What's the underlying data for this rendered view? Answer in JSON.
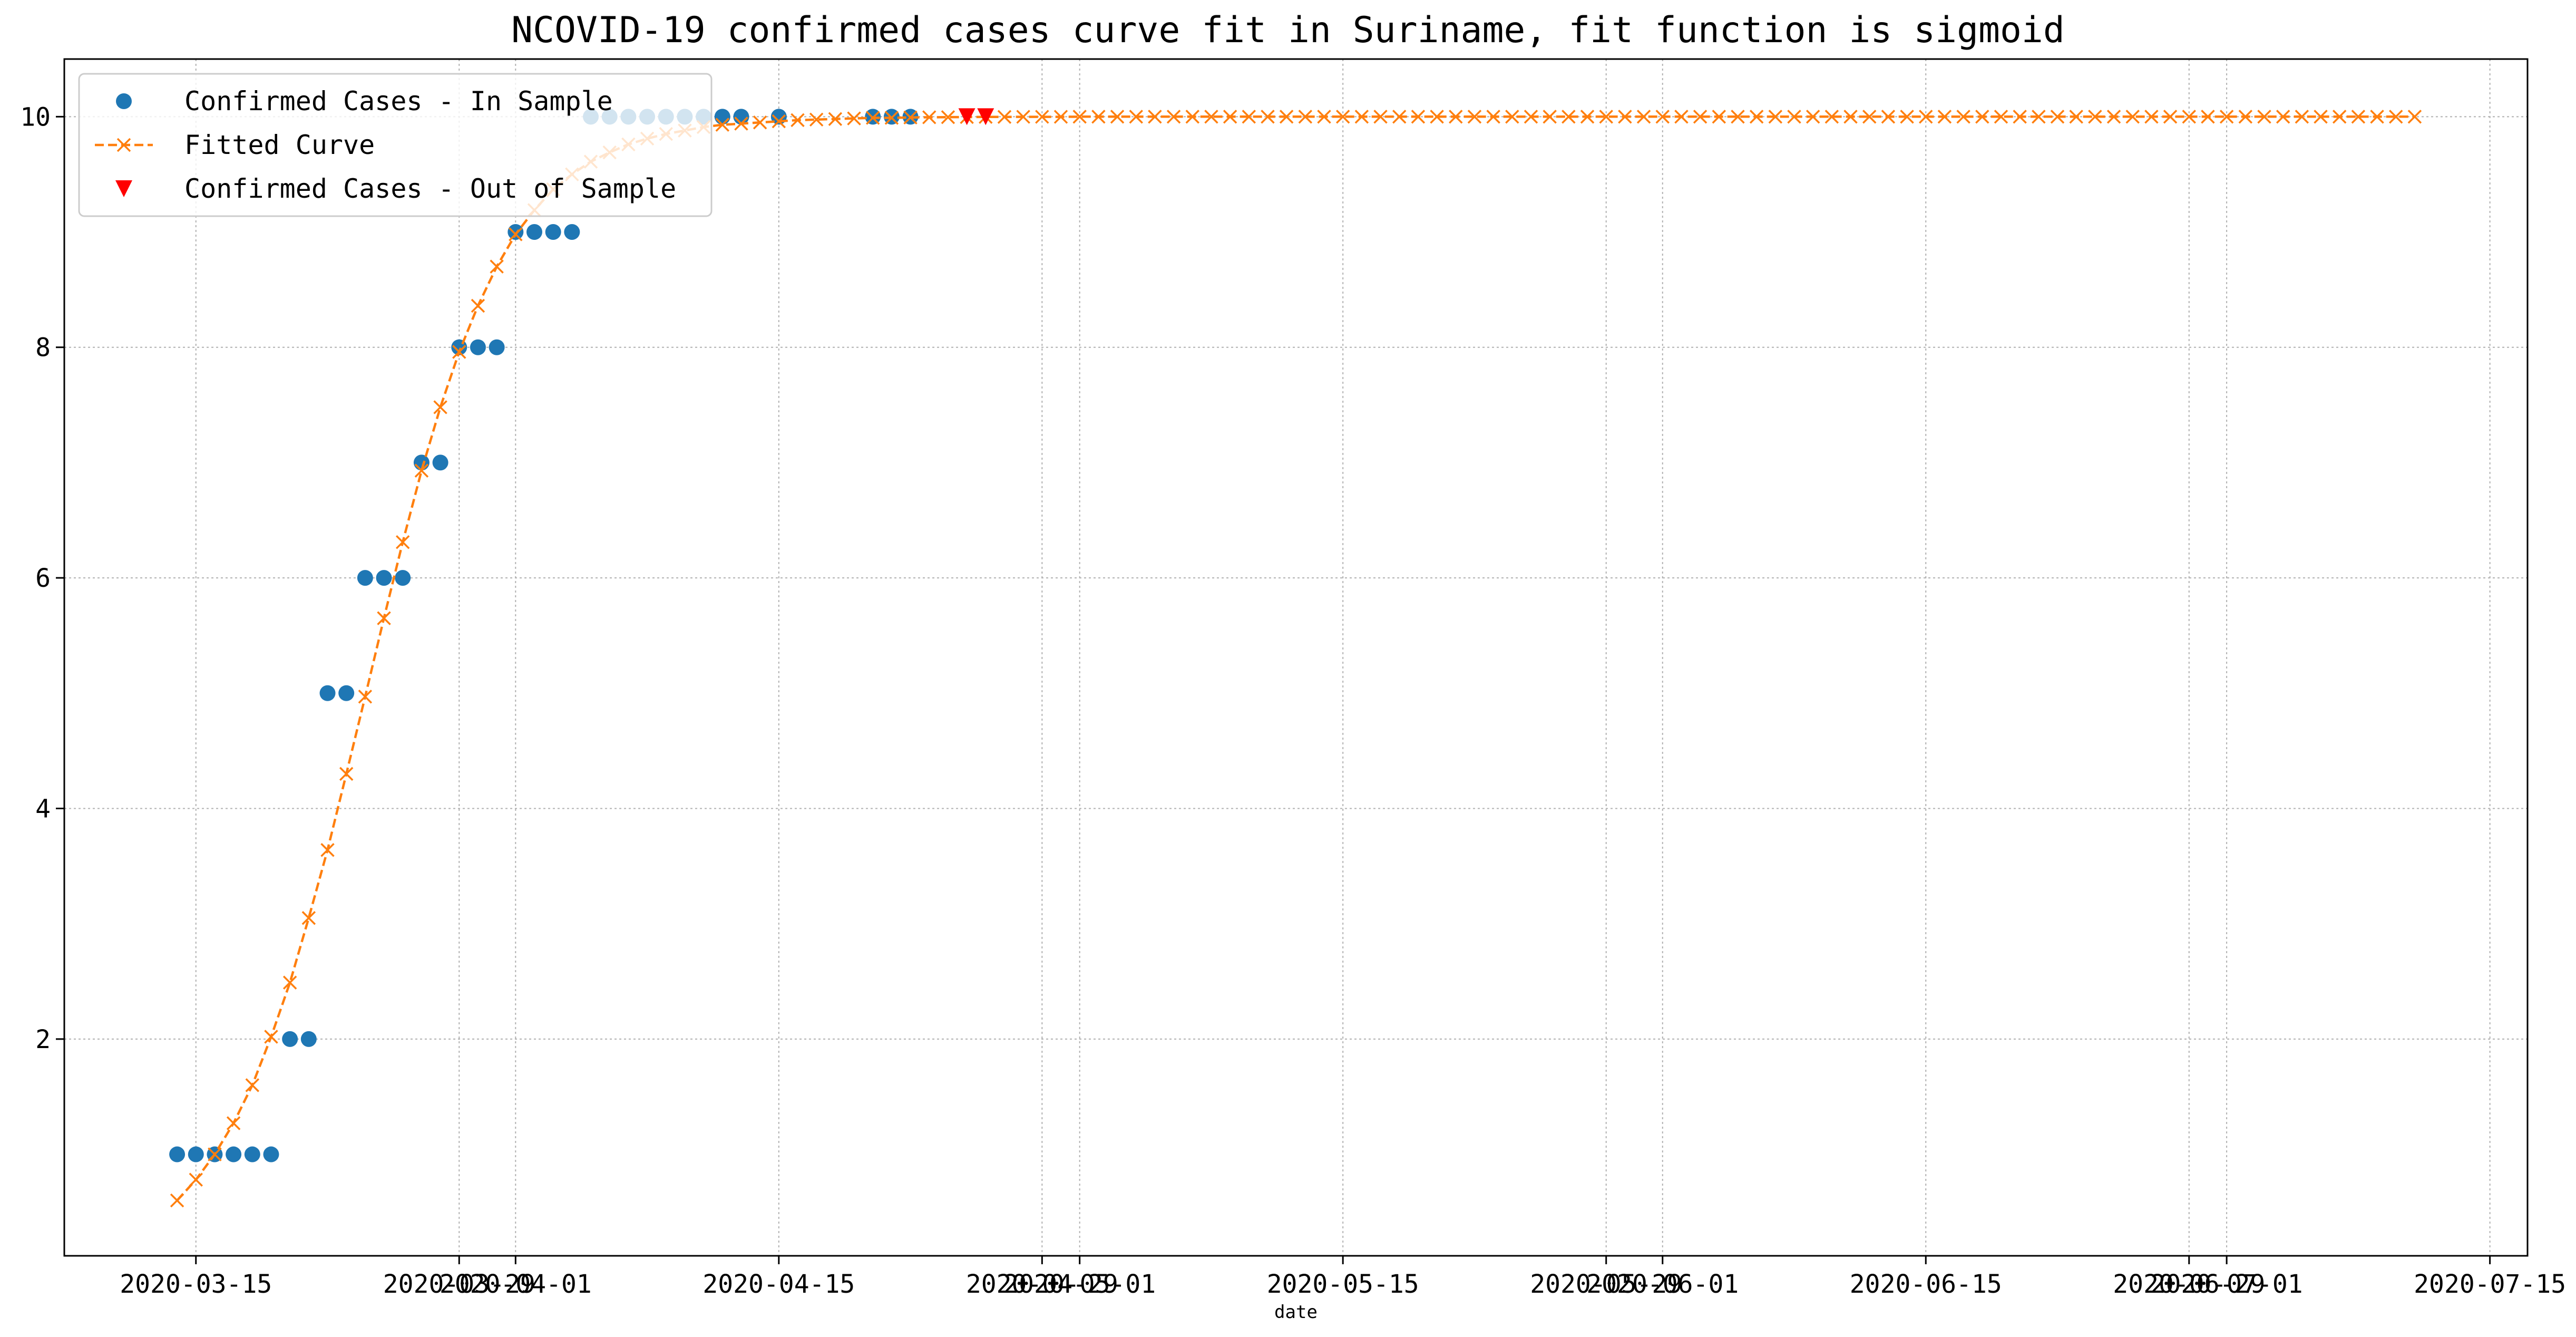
{
  "chart_data": {
    "type": "line",
    "title": "NCOVID-19 confirmed cases curve fit in Suriname, fit function is sigmoid",
    "xlabel": "date",
    "ylabel": "",
    "grid": true,
    "legend_position": "top-left",
    "x_axis": {
      "kind": "date",
      "range": [
        "2020-03-08",
        "2020-07-17"
      ],
      "tick_labels": [
        "2020-03-15",
        "2020-03-29",
        "2020-04-01",
        "2020-04-15",
        "2020-04-29",
        "2020-05-01",
        "2020-05-15",
        "2020-05-29",
        "2020-06-01",
        "2020-06-15",
        "2020-06-29",
        "2020-07-01",
        "2020-07-15"
      ]
    },
    "y_axis": {
      "range": [
        0.12,
        10.5
      ],
      "tick_labels": [
        "2",
        "4",
        "6",
        "8",
        "10"
      ]
    },
    "colors": {
      "in_sample": "#1f77b4",
      "fitted": "#ff7f0e",
      "out_of_sample": "#ff0000",
      "grid": "#b0b0b0"
    },
    "series": [
      {
        "name": "Confirmed Cases - In Sample",
        "style": "markers",
        "marker": "circle",
        "points": [
          [
            "2020-03-14",
            1
          ],
          [
            "2020-03-15",
            1
          ],
          [
            "2020-03-16",
            1
          ],
          [
            "2020-03-17",
            1
          ],
          [
            "2020-03-18",
            1
          ],
          [
            "2020-03-19",
            1
          ],
          [
            "2020-03-20",
            2
          ],
          [
            "2020-03-21",
            2
          ],
          [
            "2020-03-22",
            5
          ],
          [
            "2020-03-23",
            5
          ],
          [
            "2020-03-24",
            6
          ],
          [
            "2020-03-25",
            6
          ],
          [
            "2020-03-26",
            6
          ],
          [
            "2020-03-27",
            7
          ],
          [
            "2020-03-28",
            7
          ],
          [
            "2020-03-29",
            8
          ],
          [
            "2020-03-30",
            8
          ],
          [
            "2020-03-31",
            8
          ],
          [
            "2020-04-01",
            9
          ],
          [
            "2020-04-02",
            9
          ],
          [
            "2020-04-03",
            9
          ],
          [
            "2020-04-04",
            9
          ],
          [
            "2020-04-05",
            10
          ],
          [
            "2020-04-06",
            10
          ],
          [
            "2020-04-07",
            10
          ],
          [
            "2020-04-08",
            10
          ],
          [
            "2020-04-09",
            10
          ],
          [
            "2020-04-10",
            10
          ],
          [
            "2020-04-11",
            10
          ],
          [
            "2020-04-12",
            10
          ],
          [
            "2020-04-13",
            10
          ],
          [
            "2020-04-15",
            10
          ],
          [
            "2020-04-20",
            10
          ],
          [
            "2020-04-21",
            10
          ],
          [
            "2020-04-22",
            10
          ]
        ]
      },
      {
        "name": "Fitted Curve",
        "style": "dashed-line-x",
        "points": [
          [
            "2020-03-14",
            0.6
          ],
          [
            "2020-03-15",
            0.78
          ],
          [
            "2020-03-16",
            1.0
          ],
          [
            "2020-03-17",
            1.27
          ],
          [
            "2020-03-18",
            1.6
          ],
          [
            "2020-03-19",
            2.02
          ],
          [
            "2020-03-20",
            2.49
          ],
          [
            "2020-03-21",
            3.05
          ],
          [
            "2020-03-22",
            3.64
          ],
          [
            "2020-03-23",
            4.3
          ],
          [
            "2020-03-24",
            4.97
          ],
          [
            "2020-03-25",
            5.65
          ],
          [
            "2020-03-26",
            6.31
          ],
          [
            "2020-03-27",
            6.93
          ],
          [
            "2020-03-28",
            7.48
          ],
          [
            "2020-03-29",
            7.96
          ],
          [
            "2020-03-30",
            8.36
          ],
          [
            "2020-03-31",
            8.7
          ],
          [
            "2020-04-01",
            8.98
          ],
          [
            "2020-04-02",
            9.19
          ],
          [
            "2020-04-03",
            9.37
          ],
          [
            "2020-04-04",
            9.5
          ],
          [
            "2020-04-05",
            9.61
          ],
          [
            "2020-04-06",
            9.69
          ],
          [
            "2020-04-07",
            9.76
          ],
          [
            "2020-04-08",
            9.81
          ],
          [
            "2020-04-09",
            9.85
          ],
          [
            "2020-04-10",
            9.88
          ],
          [
            "2020-04-11",
            9.91
          ],
          [
            "2020-04-12",
            9.93
          ],
          [
            "2020-04-13",
            9.94
          ],
          [
            "2020-04-14",
            9.95
          ],
          [
            "2020-04-15",
            9.96
          ],
          [
            "2020-04-16",
            9.97
          ],
          [
            "2020-04-17",
            9.975
          ],
          [
            "2020-04-18",
            9.98
          ],
          [
            "2020-04-19",
            9.985
          ],
          [
            "2020-04-20",
            9.99
          ],
          [
            "2020-04-21",
            9.99
          ],
          [
            "2020-04-22",
            9.993
          ],
          [
            "2020-04-23",
            9.995
          ],
          [
            "2020-04-24",
            9.996
          ],
          [
            "2020-04-25",
            9.997
          ],
          [
            "2020-04-26",
            9.998
          ],
          [
            "2020-04-27",
            9.998
          ],
          [
            "2020-04-28",
            9.999
          ],
          [
            "2020-04-29",
            9.999
          ],
          [
            "2020-04-30",
            9.999
          ],
          [
            "2020-05-01",
            10
          ],
          [
            "2020-05-02",
            10
          ],
          [
            "2020-05-03",
            10
          ],
          [
            "2020-05-04",
            10
          ],
          [
            "2020-05-05",
            10
          ],
          [
            "2020-05-06",
            10
          ],
          [
            "2020-05-07",
            10
          ],
          [
            "2020-05-08",
            10
          ],
          [
            "2020-05-09",
            10
          ],
          [
            "2020-05-10",
            10
          ],
          [
            "2020-05-11",
            10
          ],
          [
            "2020-05-12",
            10
          ],
          [
            "2020-05-13",
            10
          ],
          [
            "2020-05-14",
            10
          ],
          [
            "2020-05-15",
            10
          ],
          [
            "2020-05-16",
            10
          ],
          [
            "2020-05-17",
            10
          ],
          [
            "2020-05-18",
            10
          ],
          [
            "2020-05-19",
            10
          ],
          [
            "2020-05-20",
            10
          ],
          [
            "2020-05-21",
            10
          ],
          [
            "2020-05-22",
            10
          ],
          [
            "2020-05-23",
            10
          ],
          [
            "2020-05-24",
            10
          ],
          [
            "2020-05-25",
            10
          ],
          [
            "2020-05-26",
            10
          ],
          [
            "2020-05-27",
            10
          ],
          [
            "2020-05-28",
            10
          ],
          [
            "2020-05-29",
            10
          ],
          [
            "2020-05-30",
            10
          ],
          [
            "2020-05-31",
            10
          ],
          [
            "2020-06-01",
            10
          ],
          [
            "2020-06-02",
            10
          ],
          [
            "2020-06-03",
            10
          ],
          [
            "2020-06-04",
            10
          ],
          [
            "2020-06-05",
            10
          ],
          [
            "2020-06-06",
            10
          ],
          [
            "2020-06-07",
            10
          ],
          [
            "2020-06-08",
            10
          ],
          [
            "2020-06-09",
            10
          ],
          [
            "2020-06-10",
            10
          ],
          [
            "2020-06-11",
            10
          ],
          [
            "2020-06-12",
            10
          ],
          [
            "2020-06-13",
            10
          ],
          [
            "2020-06-14",
            10
          ],
          [
            "2020-06-15",
            10
          ],
          [
            "2020-06-16",
            10
          ],
          [
            "2020-06-17",
            10
          ],
          [
            "2020-06-18",
            10
          ],
          [
            "2020-06-19",
            10
          ],
          [
            "2020-06-20",
            10
          ],
          [
            "2020-06-21",
            10
          ],
          [
            "2020-06-22",
            10
          ],
          [
            "2020-06-23",
            10
          ],
          [
            "2020-06-24",
            10
          ],
          [
            "2020-06-25",
            10
          ],
          [
            "2020-06-26",
            10
          ],
          [
            "2020-06-27",
            10
          ],
          [
            "2020-06-28",
            10
          ],
          [
            "2020-06-29",
            10
          ],
          [
            "2020-06-30",
            10
          ],
          [
            "2020-07-01",
            10
          ],
          [
            "2020-07-02",
            10
          ],
          [
            "2020-07-03",
            10
          ],
          [
            "2020-07-04",
            10
          ],
          [
            "2020-07-05",
            10
          ],
          [
            "2020-07-06",
            10
          ],
          [
            "2020-07-07",
            10
          ],
          [
            "2020-07-08",
            10
          ],
          [
            "2020-07-09",
            10
          ],
          [
            "2020-07-10",
            10
          ],
          [
            "2020-07-11",
            10
          ]
        ]
      },
      {
        "name": "Confirmed Cases - Out of Sample",
        "style": "markers",
        "marker": "triangle-down",
        "points": [
          [
            "2020-04-25",
            10
          ],
          [
            "2020-04-26",
            10
          ]
        ]
      }
    ]
  }
}
